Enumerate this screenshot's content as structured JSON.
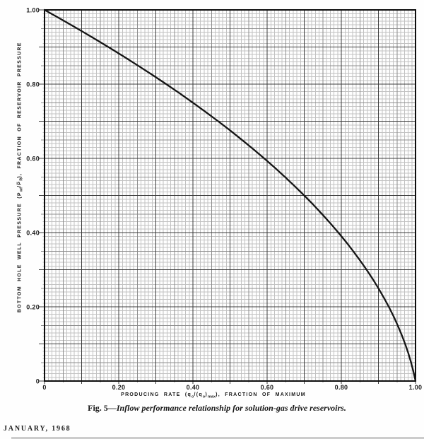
{
  "page": {
    "footer": "JANUARY, 1968"
  },
  "figure": {
    "caption_label": "Fig. 5",
    "caption_rest": "—Inflow performance relationship for solution-gas drive reservoirs."
  },
  "chart_data": {
    "type": "line",
    "title": "Fig. 5—Inflow performance relationship for solution-gas drive reservoirs.",
    "xlabel": "PRODUCING RATE (qo/(qo)max), FRACTION OF MAXIMUM",
    "ylabel": "BOTTOM HOLE WELL PRESSURE (Pwf/P̅R), FRACTION OF RESERVOIR PRESSURE",
    "xlabel_segments": [
      {
        "t": "PRODUCING RATE (q"
      },
      {
        "t": "o",
        "sub": true
      },
      {
        "t": "/(q"
      },
      {
        "t": "o",
        "sub": true
      },
      {
        "t": ")"
      },
      {
        "t": "max",
        "sub": true
      },
      {
        "t": "), FRACTION OF MAXIMUM"
      }
    ],
    "ylabel_segments": [
      {
        "t": "BOTTOM HOLE WELL PRESSURE (P"
      },
      {
        "t": "wf",
        "sub": true
      },
      {
        "t": "/P̅"
      },
      {
        "t": "R",
        "sub": true
      },
      {
        "t": "), FRACTION OF RESERVOIR PRESSURE"
      }
    ],
    "xlim": [
      0,
      1.0
    ],
    "ylim": [
      0,
      1.0
    ],
    "xticks": [
      {
        "v": 0,
        "label": "0"
      },
      {
        "v": 0.2,
        "label": "0.20"
      },
      {
        "v": 0.4,
        "label": "0.40"
      },
      {
        "v": 0.6,
        "label": "0.60"
      },
      {
        "v": 0.8,
        "label": "0.80"
      },
      {
        "v": 1.0,
        "label": "1.00"
      }
    ],
    "yticks": [
      {
        "v": 1.0,
        "label": "1.00"
      },
      {
        "v": 0.8,
        "label": "0.80"
      },
      {
        "v": 0.6,
        "label": "0.60"
      },
      {
        "v": 0.4,
        "label": "0.40"
      },
      {
        "v": 0.2,
        "label": "0.20"
      },
      {
        "v": 0,
        "label": "0"
      }
    ],
    "grid": {
      "on": true,
      "minor_step": 0.01,
      "medium_step": 0.05,
      "major_step": 0.1,
      "minor_color": "#c2c2c2",
      "medium_color": "#8e8e8e",
      "major_color": "#3d3d3d"
    },
    "border_color": "#0d0d0d",
    "curve_color": "#151515",
    "legend": "none",
    "series": [
      {
        "name": "IPR curve",
        "x_is": "producing rate fraction qo/(qo)max",
        "y_is": "bottom hole well pressure fraction Pwf/P̅R",
        "points": [
          [
            0.0,
            1.0
          ],
          [
            0.0445,
            0.975
          ],
          [
            0.088,
            0.95
          ],
          [
            0.1305,
            0.925
          ],
          [
            0.172,
            0.9
          ],
          [
            0.2125,
            0.875
          ],
          [
            0.252,
            0.85
          ],
          [
            0.2905,
            0.825
          ],
          [
            0.328,
            0.8
          ],
          [
            0.3645,
            0.775
          ],
          [
            0.4,
            0.75
          ],
          [
            0.4345,
            0.725
          ],
          [
            0.468,
            0.7
          ],
          [
            0.5005,
            0.675
          ],
          [
            0.532,
            0.65
          ],
          [
            0.5625,
            0.625
          ],
          [
            0.592,
            0.6
          ],
          [
            0.6205,
            0.575
          ],
          [
            0.648,
            0.55
          ],
          [
            0.6745,
            0.525
          ],
          [
            0.7,
            0.5
          ],
          [
            0.7245,
            0.475
          ],
          [
            0.748,
            0.45
          ],
          [
            0.7705,
            0.425
          ],
          [
            0.792,
            0.4
          ],
          [
            0.8125,
            0.375
          ],
          [
            0.832,
            0.35
          ],
          [
            0.8505,
            0.325
          ],
          [
            0.868,
            0.3
          ],
          [
            0.8845,
            0.275
          ],
          [
            0.9,
            0.25
          ],
          [
            0.9145,
            0.225
          ],
          [
            0.928,
            0.2
          ],
          [
            0.9405,
            0.175
          ],
          [
            0.952,
            0.15
          ],
          [
            0.9625,
            0.125
          ],
          [
            0.972,
            0.1
          ],
          [
            0.9805,
            0.075
          ],
          [
            0.988,
            0.05
          ],
          [
            0.9945,
            0.025
          ],
          [
            1.0,
            0.0
          ]
        ]
      }
    ]
  }
}
